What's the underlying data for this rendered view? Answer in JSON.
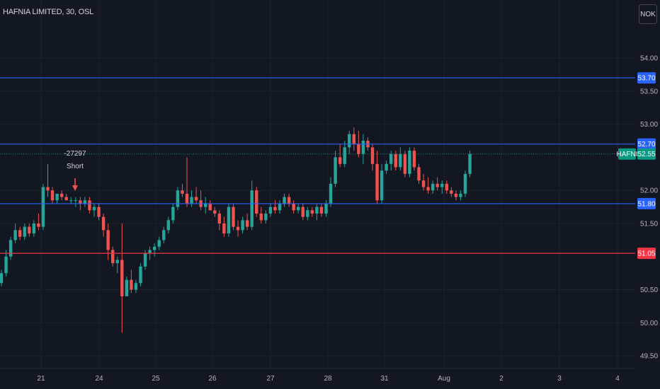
{
  "header": {
    "title": "HAFNIA LIMITED, 30, OSL",
    "currency": "NOK"
  },
  "chart_data": {
    "type": "candlestick",
    "yaxis": {
      "ticks": [
        "54.00",
        "53.50",
        "53.00",
        "52.00",
        "51.50",
        "50.50",
        "50.00",
        "49.50"
      ],
      "tick_values": [
        54.0,
        53.5,
        53.0,
        52.0,
        51.5,
        50.5,
        50.0,
        49.5
      ],
      "range": [
        49.4,
        54.4
      ]
    },
    "xaxis": {
      "labels": [
        "21",
        "24",
        "25",
        "26",
        "27",
        "28",
        "31",
        "Aug",
        "2",
        "3",
        "4"
      ]
    },
    "price_lines": [
      {
        "value": 53.7,
        "label": "53.70",
        "color": "#2962ff"
      },
      {
        "value": 52.7,
        "label": "52.70",
        "color": "#2962ff"
      },
      {
        "value": 51.8,
        "label": "51.80",
        "color": "#2962ff"
      },
      {
        "value": 51.05,
        "label": "51.05",
        "color": "#f23645"
      }
    ],
    "last_price": {
      "value": 52.55,
      "label": "52.55",
      "symbol": "HAFNI",
      "color": "#089981"
    },
    "annotation": {
      "line1": "-27297",
      "line2": "Short"
    },
    "colors": {
      "up": "#26a69a",
      "down": "#ef5350"
    },
    "candles": [
      [
        50.6,
        50.8,
        50.55,
        50.75
      ],
      [
        50.75,
        51.1,
        50.7,
        51.0
      ],
      [
        51.0,
        51.3,
        50.95,
        51.25
      ],
      [
        51.25,
        51.5,
        51.2,
        51.4
      ],
      [
        51.4,
        51.45,
        51.25,
        51.3
      ],
      [
        51.3,
        51.5,
        51.25,
        51.45
      ],
      [
        51.45,
        51.5,
        51.3,
        51.35
      ],
      [
        51.35,
        51.55,
        51.3,
        51.5
      ],
      [
        51.5,
        51.65,
        51.4,
        51.45
      ],
      [
        51.45,
        52.1,
        51.4,
        52.05
      ],
      [
        52.05,
        52.4,
        51.9,
        52.0
      ],
      [
        52.0,
        52.05,
        51.8,
        51.85
      ],
      [
        51.85,
        51.95,
        51.8,
        51.95
      ],
      [
        51.95,
        52.0,
        51.85,
        51.9
      ],
      [
        51.9,
        51.95,
        51.85,
        51.85
      ],
      [
        51.85,
        51.9,
        51.8,
        51.85
      ],
      [
        51.85,
        51.9,
        51.75,
        51.85
      ],
      [
        51.85,
        51.9,
        51.7,
        51.8
      ],
      [
        51.8,
        51.9,
        51.75,
        51.85
      ],
      [
        51.85,
        51.9,
        51.65,
        51.7
      ],
      [
        51.7,
        51.8,
        51.6,
        51.75
      ],
      [
        51.75,
        51.8,
        51.55,
        51.6
      ],
      [
        51.6,
        51.65,
        51.3,
        51.4
      ],
      [
        51.4,
        51.5,
        50.95,
        51.1
      ],
      [
        51.1,
        51.15,
        50.85,
        50.9
      ],
      [
        50.9,
        51.0,
        50.75,
        50.95
      ],
      [
        50.95,
        51.5,
        49.85,
        50.4
      ],
      [
        50.4,
        50.7,
        50.4,
        50.65
      ],
      [
        50.65,
        50.8,
        50.45,
        50.5
      ],
      [
        50.5,
        50.65,
        50.45,
        50.6
      ],
      [
        50.6,
        50.9,
        50.55,
        50.85
      ],
      [
        50.85,
        51.1,
        50.8,
        51.05
      ],
      [
        51.05,
        51.15,
        50.95,
        51.1
      ],
      [
        51.1,
        51.2,
        51.0,
        51.15
      ],
      [
        51.15,
        51.3,
        51.1,
        51.25
      ],
      [
        51.25,
        51.45,
        51.2,
        51.4
      ],
      [
        51.4,
        51.6,
        51.35,
        51.55
      ],
      [
        51.55,
        51.8,
        51.5,
        51.75
      ],
      [
        51.75,
        52.05,
        51.7,
        52.0
      ],
      [
        52.0,
        52.1,
        51.9,
        51.95
      ],
      [
        51.95,
        52.5,
        51.75,
        51.8
      ],
      [
        51.8,
        52.0,
        51.75,
        51.9
      ],
      [
        51.9,
        52.05,
        51.8,
        51.85
      ],
      [
        51.85,
        52.0,
        51.7,
        51.75
      ],
      [
        51.75,
        51.9,
        51.65,
        51.8
      ],
      [
        51.8,
        51.85,
        51.7,
        51.7
      ],
      [
        51.7,
        51.75,
        51.6,
        51.65
      ],
      [
        51.65,
        51.7,
        51.4,
        51.5
      ],
      [
        51.5,
        51.6,
        51.3,
        51.35
      ],
      [
        51.35,
        51.8,
        51.3,
        51.75
      ],
      [
        51.75,
        51.8,
        51.4,
        51.45
      ],
      [
        51.45,
        51.55,
        51.3,
        51.4
      ],
      [
        51.4,
        51.6,
        51.35,
        51.55
      ],
      [
        51.55,
        51.65,
        51.4,
        51.45
      ],
      [
        51.45,
        52.15,
        51.4,
        52.0
      ],
      [
        52.0,
        52.05,
        51.6,
        51.65
      ],
      [
        51.65,
        51.75,
        51.5,
        51.55
      ],
      [
        51.55,
        51.7,
        51.5,
        51.65
      ],
      [
        51.65,
        51.8,
        51.6,
        51.75
      ],
      [
        51.75,
        51.85,
        51.65,
        51.7
      ],
      [
        51.7,
        51.85,
        51.65,
        51.8
      ],
      [
        51.8,
        51.95,
        51.75,
        51.9
      ],
      [
        51.9,
        51.95,
        51.75,
        51.8
      ],
      [
        51.8,
        51.85,
        51.65,
        51.7
      ],
      [
        51.7,
        51.8,
        51.65,
        51.75
      ],
      [
        51.75,
        51.8,
        51.55,
        51.6
      ],
      [
        51.6,
        51.75,
        51.55,
        51.7
      ],
      [
        51.7,
        51.75,
        51.6,
        51.65
      ],
      [
        51.65,
        51.8,
        51.55,
        51.75
      ],
      [
        51.75,
        51.8,
        51.6,
        51.65
      ],
      [
        51.65,
        51.85,
        51.6,
        51.8
      ],
      [
        51.8,
        52.2,
        51.75,
        52.1
      ],
      [
        52.1,
        52.6,
        52.05,
        52.5
      ],
      [
        52.5,
        52.7,
        52.35,
        52.4
      ],
      [
        52.4,
        52.75,
        52.35,
        52.65
      ],
      [
        52.65,
        52.9,
        52.55,
        52.85
      ],
      [
        52.85,
        52.95,
        52.6,
        52.7
      ],
      [
        52.7,
        52.9,
        52.5,
        52.55
      ],
      [
        52.55,
        52.85,
        52.4,
        52.75
      ],
      [
        52.75,
        52.8,
        52.6,
        52.65
      ],
      [
        52.65,
        52.7,
        52.3,
        52.4
      ],
      [
        52.4,
        52.6,
        51.8,
        51.85
      ],
      [
        51.85,
        52.4,
        51.8,
        52.3
      ],
      [
        52.3,
        52.45,
        52.25,
        52.4
      ],
      [
        52.4,
        52.6,
        52.3,
        52.55
      ],
      [
        52.55,
        52.6,
        52.3,
        52.35
      ],
      [
        52.35,
        52.65,
        52.3,
        52.55
      ],
      [
        52.55,
        52.6,
        52.2,
        52.25
      ],
      [
        52.25,
        52.65,
        52.2,
        52.6
      ],
      [
        52.6,
        52.65,
        52.3,
        52.35
      ],
      [
        52.35,
        52.4,
        52.1,
        52.15
      ],
      [
        52.15,
        52.25,
        52.0,
        52.05
      ],
      [
        52.05,
        52.2,
        51.95,
        52.0
      ],
      [
        52.0,
        52.15,
        51.95,
        52.1
      ],
      [
        52.1,
        52.2,
        52.0,
        52.05
      ],
      [
        52.05,
        52.15,
        51.95,
        52.1
      ],
      [
        52.1,
        52.15,
        51.95,
        52.0
      ],
      [
        52.0,
        52.05,
        51.9,
        51.95
      ],
      [
        51.95,
        52.0,
        51.85,
        51.9
      ],
      [
        51.9,
        52.0,
        51.85,
        51.95
      ],
      [
        51.95,
        52.3,
        51.9,
        52.25
      ],
      [
        52.25,
        52.6,
        52.2,
        52.55
      ]
    ]
  }
}
